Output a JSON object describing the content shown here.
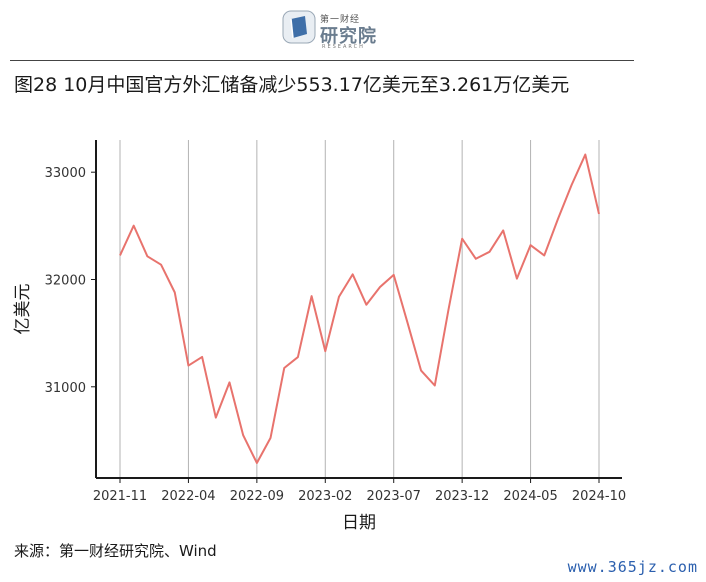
{
  "header": {
    "logo_top": "第一财经",
    "logo_main": "研究院",
    "logo_sub": "RESEARCH",
    "figure_title": "图28 10月中国官方外汇储备减少553.17亿美元至3.261万亿美元"
  },
  "footer": {
    "source": "来源：第一财经研究院、Wind",
    "watermark": "www.365jz.com"
  },
  "colors": {
    "line": "#e8736d",
    "grid": "#b3b3b3",
    "axis": "#1a1a1a"
  },
  "chart_data": {
    "type": "line",
    "xlabel": "日期",
    "ylabel": "亿美元",
    "ylim": [
      30150,
      33300
    ],
    "yticks": [
      31000,
      32000,
      33000
    ],
    "grid": "vertical",
    "x_ticks": [
      "2021-11",
      "2022-04",
      "2022-09",
      "2023-02",
      "2023-07",
      "2023-12",
      "2024-05",
      "2024-10"
    ],
    "x": [
      "2021-11",
      "2021-12",
      "2022-01",
      "2022-02",
      "2022-03",
      "2022-04",
      "2022-05",
      "2022-06",
      "2022-07",
      "2022-08",
      "2022-09",
      "2022-10",
      "2022-11",
      "2022-12",
      "2023-01",
      "2023-02",
      "2023-03",
      "2023-04",
      "2023-05",
      "2023-06",
      "2023-07",
      "2023-08",
      "2023-09",
      "2023-10",
      "2023-11",
      "2023-12",
      "2024-01",
      "2024-02",
      "2024-03",
      "2024-04",
      "2024-05",
      "2024-06",
      "2024-07",
      "2024-08",
      "2024-09",
      "2024-10"
    ],
    "series": [
      {
        "values": [
          32224,
          32502,
          32216,
          32138,
          31880,
          31198,
          31278,
          30713,
          31041,
          30549,
          30290,
          30524,
          31175,
          31277,
          31845,
          31332,
          31839,
          32048,
          31765,
          31930,
          32043,
          31601,
          31151,
          31012,
          31718,
          32380,
          32193,
          32258,
          32457,
          32008,
          32320,
          32224,
          32564,
          32882,
          33164,
          32611
        ]
      }
    ]
  }
}
